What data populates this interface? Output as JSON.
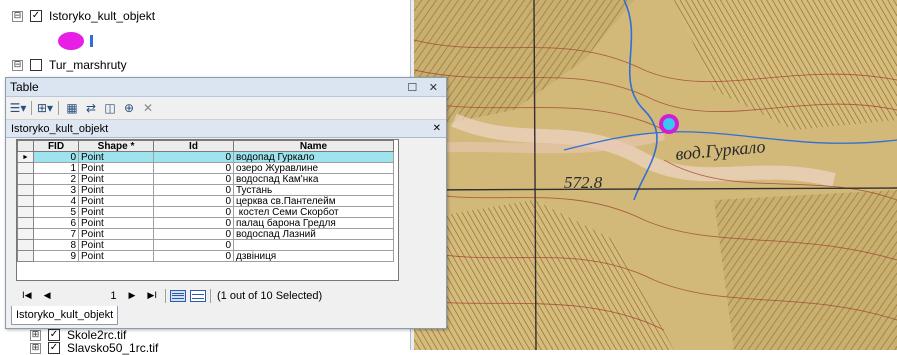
{
  "toc": {
    "layer1": {
      "name": "Istoryko_kult_objekt",
      "expander": "⊟",
      "check": "✓"
    },
    "layer2": {
      "name": "Tur_marshruty",
      "expander": "⊟",
      "check": ""
    },
    "layer3": {
      "name": "Skole2rc.tif",
      "expander": "⊞",
      "check": "✓"
    },
    "layer4": {
      "name": "Slavsko50_1rc.tif",
      "expander": "⊞",
      "check": "✓"
    },
    "symbol_color": "#e61ee6",
    "line_color": "#2f6fd6"
  },
  "window": {
    "title": "Table",
    "controls": "☐ ✕",
    "toolbar_icons": [
      "table-options-icon",
      "related-tables-icon",
      "select-by-attributes-icon",
      "switch-selection-icon",
      "clear-selection-icon",
      "zoom-to-selected-icon",
      "delete-selected-icon"
    ],
    "tab_title": "Istoryko_kult_objekt",
    "tab_close": "✕",
    "bottom_tab": "Istoryko_kult_objekt"
  },
  "table": {
    "columns": [
      "FID",
      "Shape *",
      "Id",
      "Name"
    ],
    "rows": [
      {
        "fid": "0",
        "shape": "Point",
        "id": "0",
        "name": "водопад Гуркало",
        "marker": "►"
      },
      {
        "fid": "1",
        "shape": "Point",
        "id": "0",
        "name": "озеро Журавлине",
        "marker": ""
      },
      {
        "fid": "2",
        "shape": "Point",
        "id": "0",
        "name": "водоспад Кам'нка",
        "marker": ""
      },
      {
        "fid": "3",
        "shape": "Point",
        "id": "0",
        "name": "Тустань",
        "marker": ""
      },
      {
        "fid": "4",
        "shape": "Point",
        "id": "0",
        "name": "церква св.Пантелейм",
        "marker": ""
      },
      {
        "fid": "5",
        "shape": "Point",
        "id": "0",
        "name": " костел Семи Скорбот",
        "marker": ""
      },
      {
        "fid": "6",
        "shape": "Point",
        "id": "0",
        "name": "палац барона Гредля",
        "marker": ""
      },
      {
        "fid": "7",
        "shape": "Point",
        "id": "0",
        "name": "водоспад Лазний",
        "marker": ""
      },
      {
        "fid": "8",
        "shape": "Point",
        "id": "0",
        "name": "",
        "marker": ""
      },
      {
        "fid": "9",
        "shape": "Point",
        "id": "0",
        "name": "дзвіниця",
        "marker": ""
      }
    ]
  },
  "nav": {
    "first": "I◀",
    "prev": "◀",
    "current": "1",
    "next": "▶",
    "last": "▶I",
    "status": "(1 out of 10 Selected)"
  },
  "map": {
    "label1": "вод.Гуркало",
    "label2": "572.8",
    "point_fill": "#39c6f0",
    "point_ring": "#d21ed2"
  }
}
